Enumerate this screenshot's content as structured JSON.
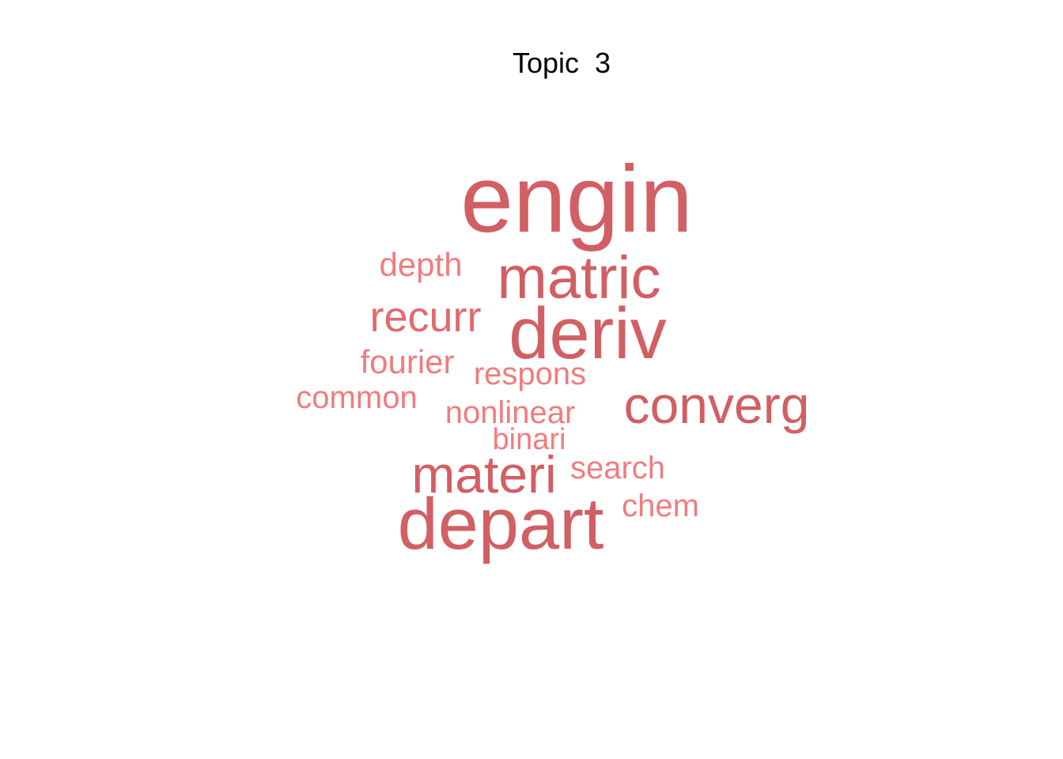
{
  "chart_data": {
    "type": "wordcloud",
    "title": "Topic  3",
    "colors": {
      "strong": "#D15F63",
      "medium": "#E06A6D",
      "light": "#F07C7E"
    },
    "words": [
      {
        "text": "engin",
        "weight": 1.0,
        "tone": "strong"
      },
      {
        "text": "depart",
        "weight": 0.9,
        "tone": "strong"
      },
      {
        "text": "deriv",
        "weight": 0.85,
        "tone": "strong"
      },
      {
        "text": "matric",
        "weight": 0.75,
        "tone": "strong"
      },
      {
        "text": "materi",
        "weight": 0.68,
        "tone": "strong"
      },
      {
        "text": "converg",
        "weight": 0.65,
        "tone": "strong"
      },
      {
        "text": "recurr",
        "weight": 0.5,
        "tone": "medium"
      },
      {
        "text": "depth",
        "weight": 0.4,
        "tone": "light"
      },
      {
        "text": "fourier",
        "weight": 0.4,
        "tone": "light"
      },
      {
        "text": "search",
        "weight": 0.38,
        "tone": "light"
      },
      {
        "text": "common",
        "weight": 0.38,
        "tone": "light"
      },
      {
        "text": "respons",
        "weight": 0.38,
        "tone": "light"
      },
      {
        "text": "chem",
        "weight": 0.37,
        "tone": "light"
      },
      {
        "text": "nonlinear",
        "weight": 0.37,
        "tone": "light"
      },
      {
        "text": "binari",
        "weight": 0.35,
        "tone": "light"
      }
    ]
  }
}
